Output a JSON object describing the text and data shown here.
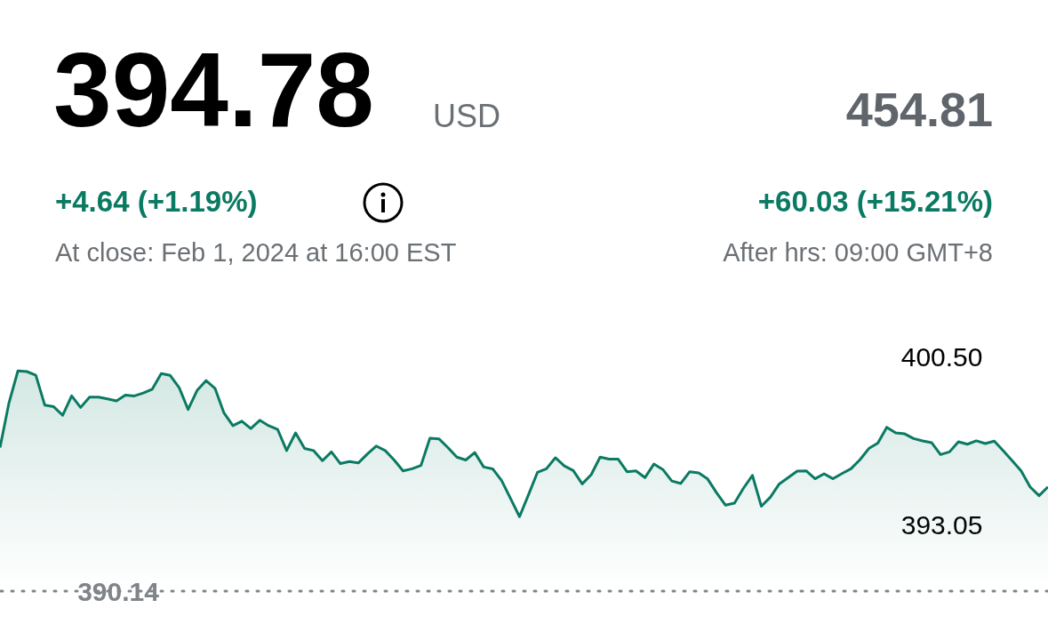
{
  "chart_data": {
    "type": "area",
    "title": "394.78",
    "annotations": [
      "USD",
      "454.81",
      "+4.64 (+1.19%)",
      "+60.03 (+15.21%)",
      "At close: Feb 1, 2024 at 16:00 EST",
      "After hrs: 09:00 GMT+8"
    ],
    "categories": [
      null,
      null,
      null,
      null,
      null,
      null,
      null,
      null,
      null,
      null,
      null,
      null,
      null,
      null,
      null,
      null,
      null,
      null,
      null,
      null,
      null,
      null,
      null,
      null,
      null,
      null,
      null,
      null,
      null,
      null,
      null,
      null,
      null,
      null,
      null,
      null,
      null,
      null,
      null,
      null,
      null,
      null,
      null,
      null,
      null,
      null,
      null,
      null,
      null,
      null,
      null,
      null,
      null,
      null,
      null,
      null,
      null,
      null,
      null,
      null,
      null,
      null,
      null,
      null,
      null,
      null,
      null,
      null,
      null,
      null,
      null,
      null,
      null,
      null,
      null,
      null,
      null,
      null,
      null,
      null,
      null,
      null,
      null,
      null,
      null,
      null,
      null,
      null,
      null,
      null,
      null,
      null,
      null,
      null,
      null,
      null,
      null,
      null,
      null,
      null,
      null,
      null,
      null,
      null,
      null,
      null,
      null,
      null,
      null,
      null,
      null,
      null,
      null,
      null,
      null,
      null,
      null,
      null
    ],
    "series": [
      {
        "color": "#0b7a63",
        "values": [
          396.5,
          398.48,
          399.9,
          399.87,
          399.71,
          398.38,
          398.31,
          397.93,
          398.79,
          398.28,
          398.74,
          398.74,
          398.66,
          398.57,
          398.83,
          398.79,
          398.92,
          399.09,
          399.78,
          399.7,
          399.16,
          398.19,
          399.03,
          399.47,
          399.13,
          398.04,
          397.47,
          397.67,
          397.34,
          397.71,
          397.47,
          397.3,
          396.37,
          397.15,
          396.46,
          396.37,
          395.92,
          396.31,
          395.79,
          395.88,
          395.82,
          396.21,
          396.57,
          396.37,
          395.95,
          395.47,
          395.56,
          395.71,
          396.92,
          396.89,
          396.5,
          396.08,
          395.95,
          396.28,
          395.64,
          395.56,
          395.04,
          394.24,
          393.44,
          394.41,
          395.4,
          395.56,
          396.05,
          395.69,
          395.48,
          394.89,
          395.3,
          396.08,
          395.99,
          395.99,
          395.43,
          395.47,
          395.17,
          395.77,
          395.53,
          395.02,
          394.91,
          395.43,
          395.38,
          395.11,
          394.5,
          393.95,
          394.04,
          394.7,
          395.27,
          393.9,
          394.3,
          394.89,
          395.17,
          395.46,
          395.47,
          395.12,
          395.34,
          395.12,
          395.35,
          395.56,
          395.96,
          396.46,
          396.7,
          397.4,
          397.15,
          397.11,
          396.9,
          396.8,
          396.72,
          396.19,
          396.31,
          396.76,
          396.65,
          396.8,
          396.68,
          396.79,
          396.36,
          395.92,
          395.47,
          394.76,
          394.37,
          394.76
        ]
      }
    ],
    "ylim": [
      390.14,
      400.5
    ],
    "yticks": [
      {
        "value": 393.05,
        "label": "393.05"
      },
      {
        "value": 400.5,
        "label": "400.50"
      }
    ],
    "ref_lines": [
      {
        "axis": "y",
        "value": 390.14,
        "label": "390.14",
        "color": "#808488",
        "line_style": "dotted"
      }
    ],
    "tick_labels": "y",
    "grid": false
  }
}
